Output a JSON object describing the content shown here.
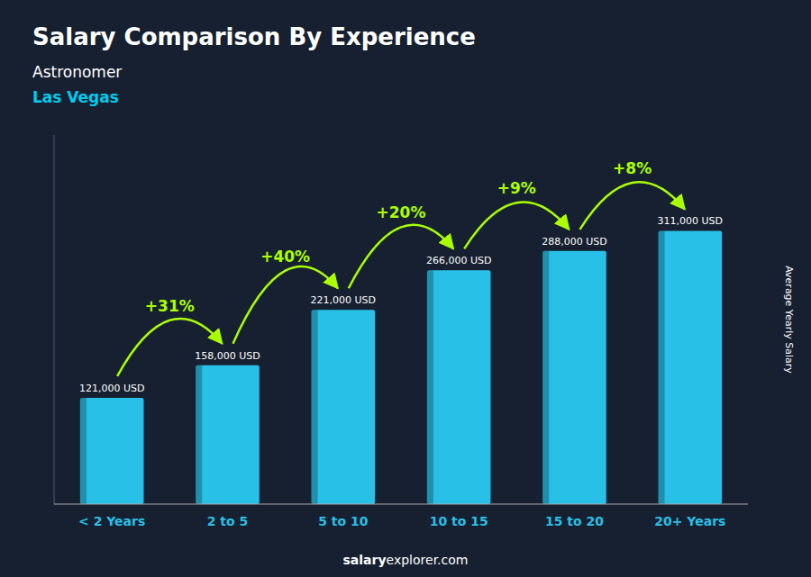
{
  "chart_data": {
    "type": "bar",
    "title": "Salary Comparison By Experience",
    "subtitle": [
      "Astronomer",
      "Las Vegas"
    ],
    "ylabel": "Average Yearly Salary",
    "footer": [
      "salary",
      "explorer.com"
    ],
    "categories": [
      "< 2 Years",
      "2 to 5",
      "5 to 10",
      "10 to 15",
      "15 to 20",
      "20+ Years"
    ],
    "values": [
      121000,
      158000,
      221000,
      266000,
      288000,
      311000
    ],
    "value_labels": [
      "121,000 USD",
      "158,000 USD",
      "221,000 USD",
      "266,000 USD",
      "288,000 USD",
      "311,000 USD"
    ],
    "data_labels": true,
    "annotations": [
      "+31%",
      "+40%",
      "+20%",
      "+9%",
      "+8%"
    ],
    "color": "#29c0e8",
    "ylim": [
      0,
      420000
    ],
    "tick_labels": "x",
    "grid": false
  }
}
